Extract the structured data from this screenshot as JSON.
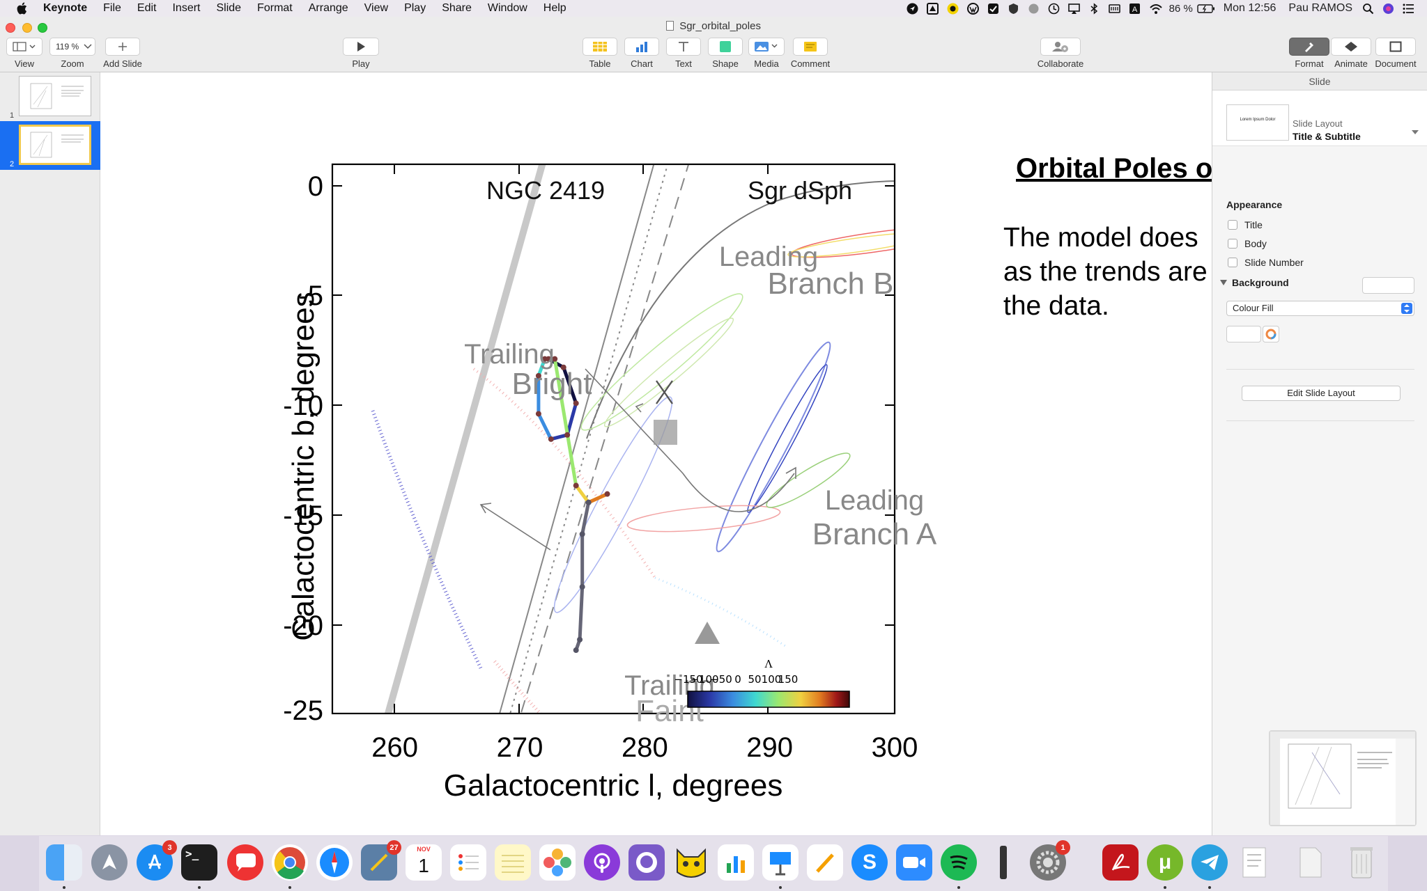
{
  "menubar": {
    "app_name": "Keynote",
    "items": [
      "File",
      "Edit",
      "Insert",
      "Slide",
      "Format",
      "Arrange",
      "View",
      "Play",
      "Share",
      "Window",
      "Help"
    ],
    "battery": "86 %",
    "clock": "Mon 12:56",
    "user": "Pau RAMOS"
  },
  "window": {
    "title": "Sgr_orbital_poles",
    "toolbar": {
      "view": "View",
      "zoom": "Zoom",
      "zoom_value": "119 %",
      "add_slide": "Add Slide",
      "play": "Play",
      "table": "Table",
      "chart": "Chart",
      "text": "Text",
      "shape": "Shape",
      "media": "Media",
      "comment": "Comment",
      "collaborate": "Collaborate",
      "format": "Format",
      "animate": "Animate",
      "document": "Document"
    }
  },
  "navigator": {
    "slides": [
      {
        "number": "1",
        "selected": false
      },
      {
        "number": "2",
        "selected": true
      }
    ]
  },
  "slide": {
    "heading": "Orbital Poles o",
    "body": "The model does\nas the trends are\nthe data."
  },
  "inspector": {
    "tab": "Slide",
    "layout_label": "Slide Layout",
    "layout_value": "Title & Subtitle",
    "layout_thumb_text": "Lorem Ipsum Dolor",
    "appearance": "Appearance",
    "checkboxes": [
      "Title",
      "Body",
      "Slide Number"
    ],
    "background": "Background",
    "fill_type": "Colour Fill",
    "edit_layout": "Edit Slide Layout"
  },
  "chart_data": {
    "type": "line",
    "xlabel": "Galactocentric l, degrees",
    "ylabel": "Galactocentric b, degrees",
    "xlim": [
      255,
      300
    ],
    "ylim": [
      -25,
      0
    ],
    "xticks": [
      "260",
      "270",
      "280",
      "290",
      "300"
    ],
    "yticks": [
      "0",
      "-5",
      "-10",
      "-15",
      "-20",
      "-25"
    ],
    "annotations": [
      "NGC 2419",
      "Sgr dSph",
      "Leading",
      "Branch B",
      "Trailing",
      "Bright",
      "Leading",
      "Branch A",
      "Trailing",
      "Faint"
    ],
    "colorbar": {
      "label": "Λ",
      "ticks": [
        "−150",
        "−100",
        "−50",
        "0",
        "50",
        "100",
        "150"
      ],
      "colors": [
        "#101040",
        "#2b3aa8",
        "#3b8de0",
        "#3fd8d0",
        "#9be870",
        "#f0d040",
        "#e07a20",
        "#a01818",
        "#400808"
      ]
    },
    "model_track": {
      "x": [
        272.3,
        273.5,
        274.5,
        273.8,
        272.5,
        271.5,
        271.5,
        272.0,
        272.8,
        274.5,
        275.5,
        277.0,
        275.5,
        275.0,
        275.0,
        274.8,
        274.5
      ],
      "y": [
        -8.2,
        -8.6,
        -10.3,
        -11.8,
        -12.0,
        -10.8,
        -9.0,
        -8.2,
        -8.2,
        -14.2,
        -15.0,
        -14.6,
        -15.0,
        -16.5,
        -19.0,
        -21.5,
        -22.0
      ]
    }
  }
}
